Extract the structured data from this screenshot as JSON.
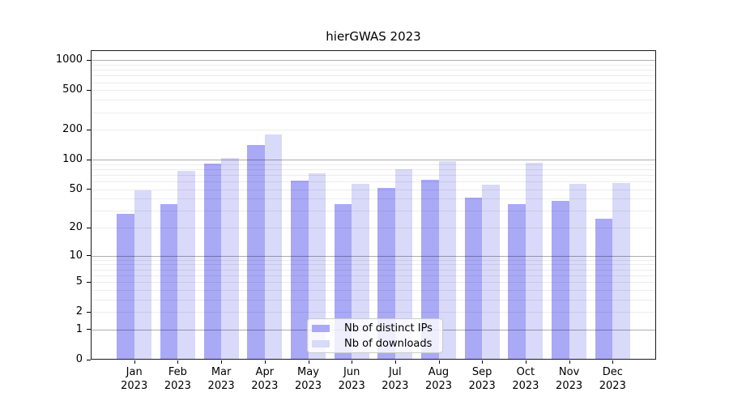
{
  "title": "hierGWAS 2023",
  "chart_data": {
    "type": "bar",
    "title": "hierGWAS 2023",
    "categories": [
      "Jan",
      "Feb",
      "Mar",
      "Apr",
      "May",
      "Jun",
      "Jul",
      "Aug",
      "Sep",
      "Oct",
      "Nov",
      "Dec"
    ],
    "year_label": "2023",
    "series": [
      {
        "name": "Nb of distinct IPs",
        "color": "#a9a9f6",
        "values": [
          28,
          35,
          92,
          142,
          61,
          35,
          52,
          62,
          41,
          35,
          38,
          25
        ]
      },
      {
        "name": "Nb of downloads",
        "color": "#d9d9f9",
        "values": [
          49,
          77,
          104,
          181,
          72,
          57,
          80,
          97,
          56,
          93,
          57,
          58
        ]
      }
    ],
    "yscale": "log1p",
    "yticks": [
      0,
      1,
      2,
      5,
      10,
      20,
      50,
      100,
      200,
      500,
      1000
    ],
    "ylim": [
      0,
      1350
    ],
    "xlabel": "",
    "ylabel": "",
    "grid": "horizontal",
    "legend_position": "inside-bottom-center"
  },
  "legend": {
    "items": [
      {
        "label": "Nb of distinct IPs",
        "color": "#a9a9f6"
      },
      {
        "label": "Nb of downloads",
        "color": "#d9d9f9"
      }
    ]
  },
  "colors": {
    "background": "#ffffff",
    "spine": "#1a1a1a",
    "major_grid": "rgba(0,0,0,0.32)",
    "minor_grid": "rgba(0,0,0,0.075)",
    "text": "#000000"
  }
}
